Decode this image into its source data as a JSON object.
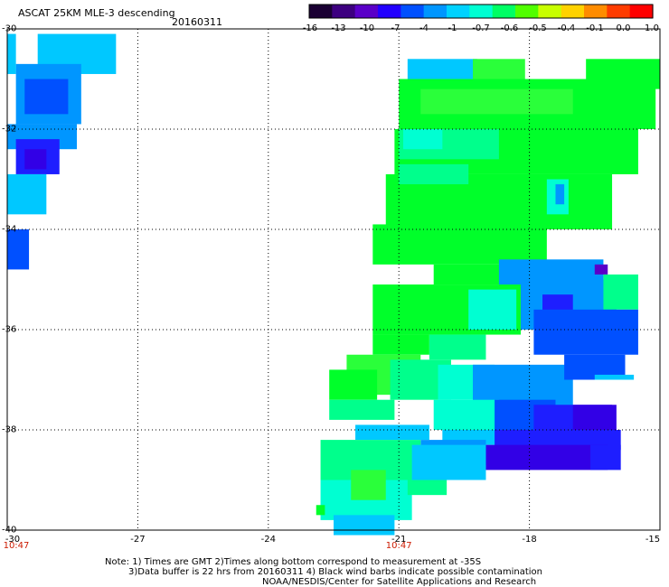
{
  "header": {
    "title": "ASCAT 25KM MLE-3 descending",
    "date": "20160311"
  },
  "colorbar": {
    "labels": [
      "-16",
      "-13",
      "-10",
      "-7",
      "-4",
      "-1",
      "-0.7",
      "-0.6",
      "-0.5",
      "-0.4",
      "-0.1",
      "0.0",
      "1.0"
    ],
    "colors": [
      "#1a0033",
      "#3d0080",
      "#5a00c8",
      "#2200ff",
      "#0050ff",
      "#0096ff",
      "#00d2ff",
      "#00ffd2",
      "#00ff64",
      "#50ff00",
      "#c8ff00",
      "#ffd200",
      "#ff8c00",
      "#ff3c00",
      "#ff0000"
    ]
  },
  "axes": {
    "y_labels": [
      "-30",
      "-32",
      "-34",
      "-36",
      "-38",
      "-40"
    ],
    "x_labels": [
      "-30",
      "-27",
      "-24",
      "-21",
      "-18",
      "-15"
    ],
    "times": [
      {
        "text": "10:47",
        "lon": -30
      },
      {
        "text": "10:47",
        "lon": -21
      }
    ]
  },
  "notes": {
    "line1": "Note: 1) Times are GMT 2)Times along bottom correspond to measurement at -35S",
    "line2": "3)Data buffer is 22 hrs from 20160311 4) Black wind barbs indicate possible contamination",
    "line3": "NOAA/NESDIS/Center for Satellite Applications and Research"
  },
  "map": {
    "lon_range": [
      -30,
      -15
    ],
    "lat_range": [
      -40,
      -30
    ],
    "grid_lons": [
      -27,
      -24,
      -21,
      -18
    ],
    "grid_lats": [
      -32,
      -34,
      -36,
      -38
    ],
    "swath_colors": {
      "green": "#00ff2a",
      "green2": "#2aff3a",
      "seagreen": "#00ff8c",
      "aqua": "#00ffd2",
      "cyan": "#00e0ff",
      "lightblue": "#00c8ff",
      "skyblue": "#0096ff",
      "blue": "#0050ff",
      "deepblue": "#1e1eff",
      "indigo": "#3200e6",
      "violet": "#5a00c8"
    },
    "patches": [
      {
        "c": "lightblue",
        "lon": [
          -29.3,
          -27.5
        ],
        "lat": [
          -30.1,
          -30.9
        ]
      },
      {
        "c": "skyblue",
        "lon": [
          -29.8,
          -28.3
        ],
        "lat": [
          -30.7,
          -31.9
        ]
      },
      {
        "c": "blue",
        "lon": [
          -29.6,
          -28.6
        ],
        "lat": [
          -31.0,
          -31.7
        ]
      },
      {
        "c": "skyblue",
        "lon": [
          -30.0,
          -28.4
        ],
        "lat": [
          -31.9,
          -32.4
        ]
      },
      {
        "c": "deepblue",
        "lon": [
          -29.8,
          -28.8
        ],
        "lat": [
          -32.2,
          -32.9
        ]
      },
      {
        "c": "indigo",
        "lon": [
          -29.6,
          -29.1
        ],
        "lat": [
          -32.4,
          -32.8
        ]
      },
      {
        "c": "lightblue",
        "lon": [
          -30.0,
          -29.1
        ],
        "lat": [
          -32.9,
          -33.7
        ]
      },
      {
        "c": "lightblue",
        "lon": [
          -30.0,
          -29.8
        ],
        "lat": [
          -30.1,
          -30.9
        ]
      },
      {
        "c": "blue",
        "lon": [
          -30.0,
          -29.5
        ],
        "lat": [
          -34.0,
          -34.8
        ]
      },
      {
        "c": "lightblue",
        "lon": [
          -20.8,
          -19.2
        ],
        "lat": [
          -30.6,
          -31.2
        ]
      },
      {
        "c": "green2",
        "lon": [
          -19.3,
          -18.1
        ],
        "lat": [
          -30.6,
          -31.0
        ]
      },
      {
        "c": "green",
        "lon": [
          -16.7,
          -15.0
        ],
        "lat": [
          -30.6,
          -31.2
        ]
      },
      {
        "c": "green",
        "lon": [
          -21.0,
          -15.1
        ],
        "lat": [
          -31.0,
          -32.0
        ]
      },
      {
        "c": "green2",
        "lon": [
          -20.5,
          -17.0
        ],
        "lat": [
          -31.2,
          -31.7
        ]
      },
      {
        "c": "green",
        "lon": [
          -21.1,
          -15.5
        ],
        "lat": [
          -32.0,
          -32.9
        ]
      },
      {
        "c": "seagreen",
        "lon": [
          -21.0,
          -18.7
        ],
        "lat": [
          -32.0,
          -32.6
        ]
      },
      {
        "c": "aqua",
        "lon": [
          -20.9,
          -20.0
        ],
        "lat": [
          -32.0,
          -32.4
        ]
      },
      {
        "c": "green",
        "lon": [
          -21.3,
          -16.1
        ],
        "lat": [
          -32.9,
          -34.0
        ]
      },
      {
        "c": "seagreen",
        "lon": [
          -21.0,
          -19.4
        ],
        "lat": [
          -32.7,
          -33.1
        ]
      },
      {
        "c": "aqua",
        "lon": [
          -17.6,
          -17.1
        ],
        "lat": [
          -33.0,
          -33.7
        ]
      },
      {
        "c": "skyblue",
        "lon": [
          -17.4,
          -17.2
        ],
        "lat": [
          -33.1,
          -33.5
        ]
      },
      {
        "c": "green",
        "lon": [
          -21.6,
          -17.6
        ],
        "lat": [
          -33.9,
          -34.7
        ]
      },
      {
        "c": "green",
        "lon": [
          -20.2,
          -18.4
        ],
        "lat": [
          -34.7,
          -35.1
        ]
      },
      {
        "c": "skyblue",
        "lon": [
          -18.7,
          -16.3
        ],
        "lat": [
          -34.6,
          -35.2
        ]
      },
      {
        "c": "violet",
        "lon": [
          -16.5,
          -16.2
        ],
        "lat": [
          -34.7,
          -34.9
        ]
      },
      {
        "c": "green",
        "lon": [
          -21.6,
          -18.2
        ],
        "lat": [
          -35.1,
          -36.1
        ]
      },
      {
        "c": "aqua",
        "lon": [
          -19.4,
          -18.3
        ],
        "lat": [
          -35.2,
          -36.0
        ]
      },
      {
        "c": "skyblue",
        "lon": [
          -18.2,
          -16.0
        ],
        "lat": [
          -35.0,
          -36.0
        ]
      },
      {
        "c": "deepblue",
        "lon": [
          -17.7,
          -17.0
        ],
        "lat": [
          -35.3,
          -35.8
        ]
      },
      {
        "c": "seagreen",
        "lon": [
          -16.3,
          -15.5
        ],
        "lat": [
          -34.9,
          -35.6
        ]
      },
      {
        "c": "blue",
        "lon": [
          -17.9,
          -15.5
        ],
        "lat": [
          -35.6,
          -36.5
        ]
      },
      {
        "c": "green",
        "lon": [
          -21.6,
          -20.3
        ],
        "lat": [
          -36.1,
          -36.5
        ]
      },
      {
        "c": "seagreen",
        "lon": [
          -20.3,
          -19.0
        ],
        "lat": [
          -36.1,
          -36.6
        ]
      },
      {
        "c": "green2",
        "lon": [
          -22.2,
          -20.5
        ],
        "lat": [
          -36.5,
          -37.3
        ]
      },
      {
        "c": "green",
        "lon": [
          -22.6,
          -21.5
        ],
        "lat": [
          -36.8,
          -37.4
        ]
      },
      {
        "c": "seagreen",
        "lon": [
          -21.2,
          -19.8
        ],
        "lat": [
          -36.6,
          -37.4
        ]
      },
      {
        "c": "aqua",
        "lon": [
          -20.1,
          -18.8
        ],
        "lat": [
          -36.7,
          -37.4
        ]
      },
      {
        "c": "skyblue",
        "lon": [
          -19.3,
          -17.0
        ],
        "lat": [
          -36.7,
          -37.6
        ]
      },
      {
        "c": "blue",
        "lon": [
          -17.2,
          -15.8
        ],
        "lat": [
          -36.5,
          -37.0
        ]
      },
      {
        "c": "lightblue",
        "lon": [
          -16.5,
          -15.6
        ],
        "lat": [
          -36.9,
          -37.0
        ]
      },
      {
        "c": "seagreen",
        "lon": [
          -22.6,
          -21.1
        ],
        "lat": [
          -37.4,
          -37.8
        ]
      },
      {
        "c": "aqua",
        "lon": [
          -20.2,
          -18.7
        ],
        "lat": [
          -37.4,
          -38.0
        ]
      },
      {
        "c": "blue",
        "lon": [
          -18.8,
          -17.4
        ],
        "lat": [
          -37.4,
          -38.0
        ]
      },
      {
        "c": "deepblue",
        "lon": [
          -17.9,
          -16.1
        ],
        "lat": [
          -37.5,
          -38.3
        ]
      },
      {
        "c": "indigo",
        "lon": [
          -17.0,
          -16.0
        ],
        "lat": [
          -37.5,
          -38.0
        ]
      },
      {
        "c": "lightblue",
        "lon": [
          -20.0,
          -18.5
        ],
        "lat": [
          -38.0,
          -38.3
        ]
      },
      {
        "c": "deepblue",
        "lon": [
          -18.8,
          -15.9
        ],
        "lat": [
          -38.0,
          -38.4
        ]
      },
      {
        "c": "lightblue",
        "lon": [
          -22.0,
          -20.3
        ],
        "lat": [
          -37.9,
          -38.2
        ]
      },
      {
        "c": "skyblue",
        "lon": [
          -20.5,
          -19.0
        ],
        "lat": [
          -38.2,
          -38.7
        ]
      },
      {
        "c": "indigo",
        "lon": [
          -19.0,
          -16.2
        ],
        "lat": [
          -38.3,
          -38.8
        ]
      },
      {
        "c": "deepblue",
        "lon": [
          -16.6,
          -15.9
        ],
        "lat": [
          -38.3,
          -38.8
        ]
      },
      {
        "c": "seagreen",
        "lon": [
          -22.8,
          -20.5
        ],
        "lat": [
          -38.2,
          -39.0
        ]
      },
      {
        "c": "lightblue",
        "lon": [
          -20.7,
          -19.0
        ],
        "lat": [
          -38.3,
          -39.0
        ]
      },
      {
        "c": "aqua",
        "lon": [
          -22.8,
          -20.7
        ],
        "lat": [
          -39.0,
          -39.8
        ]
      },
      {
        "c": "green2",
        "lon": [
          -22.1,
          -21.3
        ],
        "lat": [
          -38.8,
          -39.4
        ]
      },
      {
        "c": "seagreen",
        "lon": [
          -20.8,
          -19.9
        ],
        "lat": [
          -39.0,
          -39.3
        ]
      },
      {
        "c": "lightblue",
        "lon": [
          -22.5,
          -21.1
        ],
        "lat": [
          -39.7,
          -40.1
        ]
      },
      {
        "c": "green",
        "lon": [
          -22.9,
          -22.7
        ],
        "lat": [
          -39.5,
          -39.7
        ]
      }
    ]
  }
}
